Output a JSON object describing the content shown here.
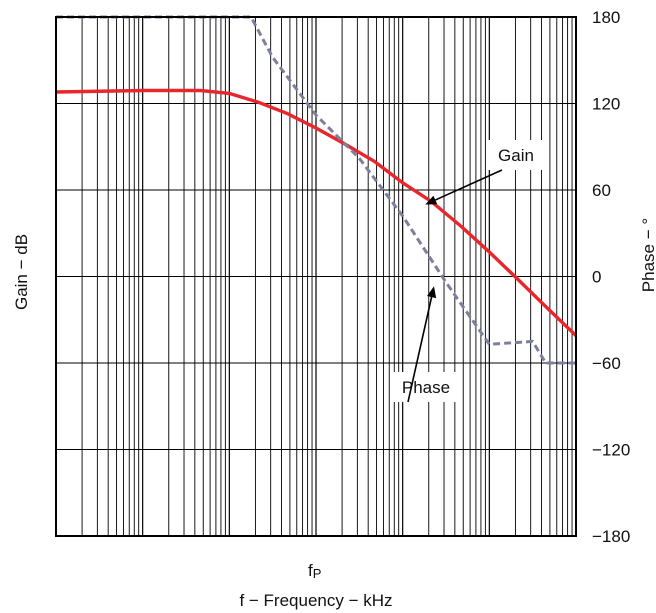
{
  "chart_data": {
    "type": "line",
    "title": "",
    "xlabel": "f − Frequency − kHz",
    "xmarker": {
      "main": "f",
      "sub": "P"
    },
    "ylabel_left": "Gain − dB",
    "ylabel_right": "Phase − °",
    "x_scale": "log",
    "x_decades": 6,
    "ylim_right": [
      -180,
      180
    ],
    "right_ticks": [
      "180",
      "120",
      "60",
      "0",
      "−60",
      "−120",
      "−180"
    ],
    "grid": true,
    "series": [
      {
        "name": "Gain",
        "color": "#e8262b",
        "dash": false,
        "axis": "right",
        "x": [
          0,
          1,
          1.67,
          2,
          2.33,
          2.67,
          3,
          3.33,
          3.67,
          4,
          4.33,
          4.67,
          5,
          5.33,
          5.67,
          6
        ],
        "y": [
          128,
          129,
          129,
          127,
          121,
          113,
          103,
          92,
          80,
          65,
          52,
          35,
          17,
          -2,
          -22,
          -41
        ]
      },
      {
        "name": "Phase",
        "color": "#7d7f9e",
        "dash": true,
        "axis": "right",
        "x": [
          0,
          2.25,
          2.5,
          3,
          3.5,
          4,
          4.5,
          5,
          5.5,
          5.65,
          6
        ],
        "y": [
          180,
          180,
          152,
          112,
          82,
          42,
          -4,
          -47,
          -45,
          -60,
          -60
        ]
      }
    ],
    "annotations": [
      {
        "text": "Gain",
        "series": "Gain"
      },
      {
        "text": "Phase",
        "series": "Phase"
      }
    ]
  }
}
